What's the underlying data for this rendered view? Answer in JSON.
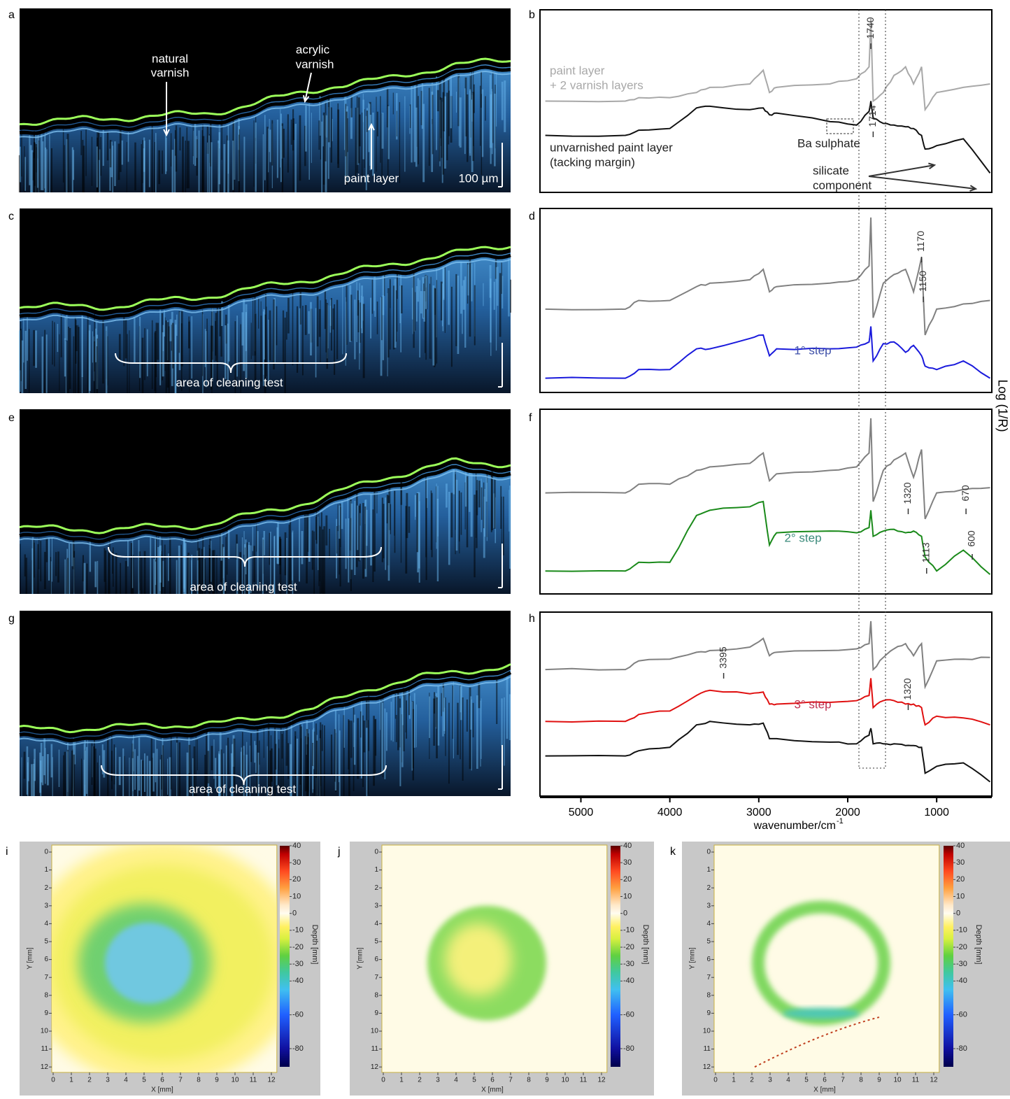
{
  "panel_labels": [
    "a",
    "b",
    "c",
    "d",
    "e",
    "f",
    "g",
    "h",
    "i",
    "j",
    "k"
  ],
  "oct_annotations": {
    "natural_varnish": [
      "natural",
      "varnish"
    ],
    "acrylic_varnish": [
      "acrylic",
      "varnish"
    ],
    "paint_layer": "paint layer",
    "scale_bar": "100 µm",
    "cleaning_test": "area of cleaning test"
  },
  "chart_data": {
    "type": "line",
    "x_label": "wavenumber/cm",
    "x_label_superscript": "-1",
    "y_label": "Log (1/R)",
    "xlim": [
      5460,
      380
    ],
    "xticks": [
      5000,
      4000,
      3000,
      2000,
      1000
    ],
    "x": [
      5400,
      4500,
      4350,
      4000,
      3700,
      3550,
      3100,
      2950,
      2880,
      2800,
      2200,
      1900,
      1760,
      1740,
      1714,
      1600,
      1480,
      1350,
      1260,
      1170,
      1130,
      1000,
      700,
      400
    ],
    "annotations": {
      "ba_sulphate": "Ba sulphate",
      "silicate_component": [
        "silicate",
        "component"
      ]
    },
    "panels": [
      {
        "ylim": [
          0,
          100
        ],
        "series": [
          {
            "name": [
              "paint layer",
              "+ 2 varnish layers"
            ],
            "color": "#a8a8a8",
            "label_color": "#a8a8a8",
            "values": [
              50,
              50,
              52,
              52,
              55,
              58,
              60,
              68,
              55,
              58,
              60,
              63,
              70,
              98,
              50,
              55,
              65,
              70,
              60,
              70,
              45,
              55,
              58,
              60
            ]
          },
          {
            "name": [
              "unvarnished paint layer",
              "(tacking margin)"
            ],
            "color": "#111111",
            "label_color": "#222222",
            "values": [
              30,
              30,
              33,
              34,
              46,
              47,
              45,
              46,
              42,
              43,
              38,
              36,
              44,
              50,
              40,
              37,
              36,
              35,
              34,
              30,
              22,
              24,
              28,
              8
            ]
          }
        ],
        "peaks": [
          {
            "value": 1740,
            "label": "1740"
          },
          {
            "value": 1714,
            "label": "1714"
          }
        ]
      },
      {
        "ylim": [
          0,
          100
        ],
        "series": [
          {
            "color": "#808080",
            "values": [
              45,
              45,
              50,
              50,
              58,
              60,
              62,
              68,
              55,
              58,
              60,
              62,
              70,
              98,
              40,
              60,
              65,
              68,
              55,
              75,
              30,
              45,
              48,
              50
            ]
          },
          {
            "name": "1° step",
            "color": "#1a1adc",
            "label_color": "#3d4fa8",
            "values": [
              5,
              5,
              10,
              10,
              22,
              22,
              28,
              30,
              18,
              22,
              22,
              23,
              26,
              35,
              15,
              25,
              26,
              20,
              24,
              18,
              12,
              10,
              15,
              5
            ]
          }
        ],
        "peaks": [
          {
            "value": 1170,
            "label": "1170"
          },
          {
            "value": 1150,
            "label": "1150"
          }
        ]
      },
      {
        "ylim": [
          0,
          100
        ],
        "series": [
          {
            "color": "#808080",
            "values": [
              55,
              55,
              60,
              60,
              68,
              70,
              72,
              78,
              62,
              66,
              68,
              70,
              78,
              98,
              50,
              68,
              74,
              78,
              64,
              80,
              40,
              55,
              57,
              58
            ]
          },
          {
            "name": "2° step",
            "color": "#1a8a1a",
            "label_color": "#3a8a7a",
            "values": [
              10,
              10,
              15,
              15,
              42,
              45,
              47,
              50,
              25,
              32,
              33,
              32,
              35,
              45,
              30,
              33,
              34,
              32,
              33,
              30,
              18,
              10,
              22,
              8
            ]
          }
        ],
        "peaks": [
          {
            "value": 1320,
            "label": "1320"
          },
          {
            "value": 1113,
            "label": "1113"
          },
          {
            "value": 670,
            "label": "670"
          },
          {
            "value": 600,
            "label": "600"
          }
        ]
      },
      {
        "ylim": [
          0,
          100
        ],
        "series": [
          {
            "color": "#808080",
            "values": [
              70,
              70,
              75,
              76,
              80,
              81,
              83,
              88,
              78,
              80,
              81,
              82,
              85,
              98,
              70,
              77,
              82,
              85,
              78,
              85,
              60,
              75,
              76,
              77
            ]
          },
          {
            "name": "3° step",
            "color": "#e01010",
            "label_color": "#c03050",
            "values": [
              40,
              40,
              44,
              46,
              55,
              58,
              56,
              57,
              50,
              50,
              51,
              52,
              55,
              65,
              48,
              52,
              52,
              50,
              50,
              48,
              38,
              43,
              42,
              38
            ]
          },
          {
            "color": "#111111",
            "values": [
              20,
              20,
              23,
              25,
              38,
              40,
              38,
              39,
              30,
              30,
              28,
              27,
              32,
              36,
              27,
              27,
              27,
              26,
              26,
              25,
              10,
              14,
              16,
              5
            ]
          }
        ],
        "peaks": [
          {
            "value": 3395,
            "label": "3395"
          },
          {
            "value": 1320,
            "label": "1320"
          }
        ]
      }
    ]
  },
  "maps": {
    "x_label": "X [mm]",
    "y_label": "Y [mm]",
    "xlim": [
      0,
      12
    ],
    "ylim": [
      0,
      12
    ],
    "xticks": [
      0,
      1,
      2,
      3,
      4,
      5,
      6,
      7,
      8,
      9,
      10,
      11,
      12
    ],
    "yticks": [
      0,
      1,
      2,
      3,
      4,
      5,
      6,
      7,
      8,
      9,
      10,
      11,
      12
    ],
    "colorbar": {
      "label": "Depth [mm]",
      "lim": [
        40,
        -80
      ],
      "ticks": [
        40,
        30,
        20,
        10,
        0,
        -10,
        -20,
        -30,
        -40,
        -60,
        -80
      ]
    }
  }
}
